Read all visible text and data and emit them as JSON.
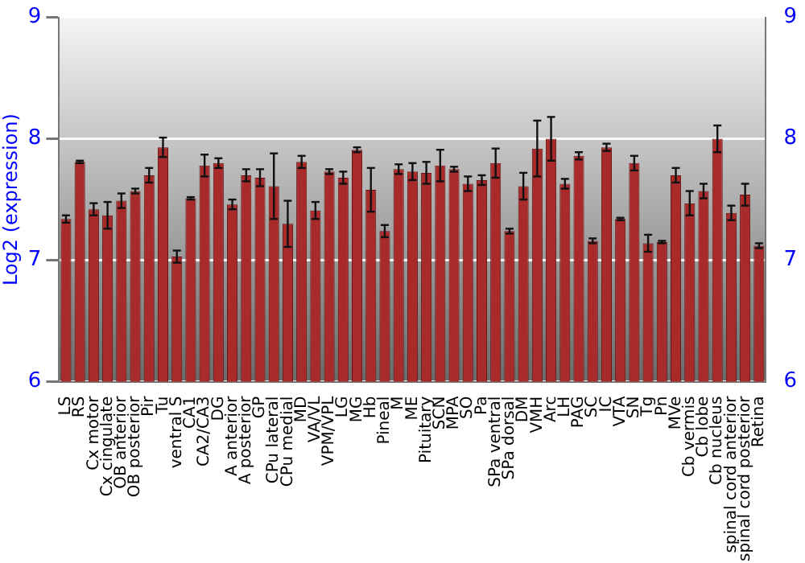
{
  "chart_data": {
    "type": "bar",
    "ylabel": "Log2 (expression)",
    "categories": [
      "LS",
      "RS",
      "Cx motor",
      "Cx cingulate",
      "OB anterior",
      "OB posterior",
      "Pir",
      "Tu",
      "ventral S",
      "CA1",
      "CA2/CA3",
      "DG",
      "A anterior",
      "A posterior",
      "GP",
      "CPu lateral",
      "CPu medial",
      "MD",
      "VA/VL",
      "VPM/VPL",
      "LG",
      "MG",
      "Hb",
      "Pineal",
      "M",
      "ME",
      "Pituitary",
      "SCN",
      "MPA",
      "SO",
      "Pa",
      "SPa ventral",
      "SPa dorsal",
      "DM",
      "VMH",
      "Arc",
      "LH",
      "PAG",
      "SC",
      "IC",
      "VTA",
      "SN",
      "Tg",
      "Pn",
      "MVe",
      "Cb vermis",
      "Cb lobe",
      "Cb nucleus",
      "spinal cord anterior",
      "spinal cord posterior",
      "Retina"
    ],
    "values": [
      7.34,
      7.81,
      7.42,
      7.37,
      7.49,
      7.57,
      7.7,
      7.93,
      7.03,
      7.51,
      7.78,
      7.8,
      7.46,
      7.7,
      7.68,
      7.61,
      7.3,
      7.81,
      7.41,
      7.73,
      7.68,
      7.91,
      7.58,
      7.24,
      7.75,
      7.73,
      7.72,
      7.78,
      7.75,
      7.63,
      7.66,
      7.8,
      7.24,
      7.61,
      7.92,
      8.0,
      7.63,
      7.86,
      7.16,
      7.93,
      7.34,
      7.8,
      7.14,
      7.15,
      7.7,
      7.47,
      7.57,
      8.0,
      7.39,
      7.54,
      7.12
    ],
    "errors": [
      0.03,
      0.01,
      0.05,
      0.11,
      0.06,
      0.02,
      0.06,
      0.08,
      0.05,
      0.01,
      0.09,
      0.04,
      0.04,
      0.05,
      0.07,
      0.27,
      0.19,
      0.05,
      0.07,
      0.02,
      0.05,
      0.02,
      0.18,
      0.05,
      0.04,
      0.07,
      0.09,
      0.13,
      0.02,
      0.06,
      0.04,
      0.12,
      0.02,
      0.11,
      0.23,
      0.18,
      0.04,
      0.03,
      0.02,
      0.03,
      0.01,
      0.06,
      0.07,
      0.01,
      0.06,
      0.1,
      0.06,
      0.11,
      0.06,
      0.09,
      0.02
    ],
    "color": "#a82a2a",
    "ylim": [
      6,
      9
    ],
    "yticks": [
      6,
      7,
      8,
      9
    ],
    "y2lim": [
      6,
      9
    ],
    "y2ticks": [
      6,
      7,
      8,
      9
    ],
    "grid": "y"
  }
}
